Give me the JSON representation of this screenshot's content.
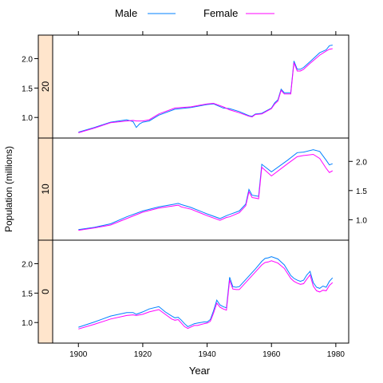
{
  "chart_data": {
    "type": "line",
    "layout": "trellis panels stacked vertically, shared x axis, alternating y tick sides",
    "xlabel": "Year",
    "ylabel": "Population (millions)",
    "xlim": [
      1892,
      1984
    ],
    "x_ticks": [
      1900,
      1920,
      1940,
      1960,
      1980
    ],
    "y_ticks": [
      1.0,
      1.5,
      2.0
    ],
    "y_tick_labels": [
      "1.0",
      "1.5",
      "2.0"
    ],
    "legend": {
      "placement": "top-center",
      "entries": [
        {
          "name": "Male",
          "color": "#0080ff"
        },
        {
          "name": "Female",
          "color": "#ff00ff"
        }
      ]
    },
    "strip_color": "#ffe5cc",
    "panels": [
      {
        "strip": "20",
        "ylim": [
          0.65,
          2.4
        ],
        "y_tick_side": "left",
        "series": [
          {
            "name": "Male",
            "color": "#0080ff",
            "x": [
              1900,
              1905,
              1910,
              1915,
              1917,
              1918,
              1919,
              1920,
              1922,
              1925,
              1930,
              1935,
              1940,
              1942,
              1945,
              1947,
              1950,
              1953,
              1954,
              1955,
              1957,
              1960,
              1961,
              1962,
              1963,
              1964,
              1965,
              1966,
              1967,
              1968,
              1969,
              1970,
              1972,
              1975,
              1977,
              1978,
              1979
            ],
            "y": [
              0.75,
              0.83,
              0.92,
              0.96,
              0.93,
              0.83,
              0.89,
              0.92,
              0.94,
              1.04,
              1.14,
              1.17,
              1.22,
              1.23,
              1.16,
              1.15,
              1.1,
              1.03,
              1.02,
              1.06,
              1.07,
              1.16,
              1.25,
              1.3,
              1.48,
              1.42,
              1.42,
              1.42,
              1.96,
              1.82,
              1.82,
              1.85,
              1.95,
              2.1,
              2.15,
              2.22,
              2.23
            ]
          },
          {
            "name": "Female",
            "color": "#ff00ff",
            "x": [
              1900,
              1905,
              1910,
              1915,
              1917,
              1918,
              1919,
              1920,
              1922,
              1925,
              1930,
              1935,
              1940,
              1942,
              1945,
              1947,
              1950,
              1953,
              1954,
              1955,
              1957,
              1960,
              1961,
              1962,
              1963,
              1964,
              1965,
              1966,
              1967,
              1968,
              1969,
              1970,
              1972,
              1975,
              1977,
              1978,
              1979
            ],
            "y": [
              0.74,
              0.82,
              0.91,
              0.94,
              0.95,
              0.94,
              0.94,
              0.94,
              0.96,
              1.06,
              1.16,
              1.18,
              1.23,
              1.24,
              1.18,
              1.13,
              1.08,
              1.02,
              1.01,
              1.05,
              1.06,
              1.15,
              1.23,
              1.28,
              1.46,
              1.4,
              1.4,
              1.4,
              1.93,
              1.79,
              1.79,
              1.82,
              1.92,
              2.06,
              2.13,
              2.16,
              2.17
            ]
          }
        ]
      },
      {
        "strip": "10",
        "ylim": [
          0.65,
          2.4
        ],
        "y_tick_side": "right",
        "series": [
          {
            "name": "Male",
            "color": "#0080ff",
            "x": [
              1900,
              1905,
              1910,
              1915,
              1920,
              1925,
              1930,
              1931,
              1932,
              1935,
              1940,
              1944,
              1946,
              1947,
              1950,
              1952,
              1953,
              1954,
              1955,
              1956,
              1957,
              1960,
              1965,
              1968,
              1970,
              1973,
              1975,
              1977,
              1978,
              1979
            ],
            "y": [
              0.83,
              0.87,
              0.93,
              1.05,
              1.15,
              1.22,
              1.27,
              1.28,
              1.26,
              1.21,
              1.1,
              1.02,
              1.07,
              1.09,
              1.15,
              1.27,
              1.52,
              1.42,
              1.41,
              1.4,
              1.95,
              1.82,
              2.02,
              2.15,
              2.16,
              2.2,
              2.17,
              2.02,
              1.94,
              1.96
            ]
          },
          {
            "name": "Female",
            "color": "#ff00ff",
            "x": [
              1900,
              1905,
              1910,
              1915,
              1920,
              1925,
              1930,
              1931,
              1932,
              1935,
              1940,
              1944,
              1946,
              1947,
              1950,
              1952,
              1953,
              1954,
              1955,
              1956,
              1957,
              1960,
              1965,
              1968,
              1970,
              1973,
              1975,
              1977,
              1978,
              1979
            ],
            "y": [
              0.82,
              0.86,
              0.91,
              1.02,
              1.13,
              1.2,
              1.24,
              1.25,
              1.22,
              1.18,
              1.07,
              0.99,
              1.04,
              1.05,
              1.12,
              1.24,
              1.48,
              1.38,
              1.37,
              1.36,
              1.9,
              1.75,
              1.96,
              2.08,
              2.1,
              2.12,
              2.05,
              1.88,
              1.81,
              1.84
            ]
          }
        ]
      },
      {
        "strip": "0",
        "ylim": [
          0.65,
          2.4
        ],
        "y_tick_side": "left",
        "series": [
          {
            "name": "Male",
            "color": "#0080ff",
            "x": [
              1900,
              1905,
              1910,
              1915,
              1917,
              1918,
              1920,
              1922,
              1925,
              1927,
              1929,
              1930,
              1931,
              1932,
              1933,
              1934,
              1936,
              1937,
              1939,
              1940,
              1941,
              1942,
              1943,
              1944,
              1945,
              1946,
              1947,
              1948,
              1949,
              1950,
              1955,
              1957,
              1958,
              1959,
              1960,
              1962,
              1964,
              1966,
              1967,
              1968,
              1969,
              1970,
              1971,
              1972,
              1973,
              1974,
              1975,
              1976,
              1977,
              1978,
              1979
            ],
            "y": [
              0.92,
              1.01,
              1.11,
              1.17,
              1.17,
              1.14,
              1.18,
              1.23,
              1.27,
              1.18,
              1.11,
              1.08,
              1.09,
              1.04,
              0.98,
              0.93,
              0.98,
              0.99,
              1.01,
              1.01,
              1.05,
              1.2,
              1.38,
              1.3,
              1.27,
              1.25,
              1.77,
              1.61,
              1.6,
              1.61,
              1.91,
              2.04,
              2.09,
              2.1,
              2.12,
              2.08,
              1.98,
              1.8,
              1.75,
              1.72,
              1.7,
              1.72,
              1.81,
              1.87,
              1.68,
              1.6,
              1.58,
              1.62,
              1.6,
              1.7,
              1.76
            ]
          },
          {
            "name": "Female",
            "color": "#ff00ff",
            "x": [
              1900,
              1905,
              1910,
              1915,
              1917,
              1918,
              1920,
              1922,
              1925,
              1927,
              1929,
              1930,
              1931,
              1932,
              1933,
              1934,
              1936,
              1937,
              1939,
              1940,
              1941,
              1942,
              1943,
              1944,
              1945,
              1946,
              1947,
              1948,
              1949,
              1950,
              1955,
              1957,
              1958,
              1959,
              1960,
              1962,
              1964,
              1966,
              1967,
              1968,
              1969,
              1970,
              1971,
              1972,
              1973,
              1974,
              1975,
              1976,
              1977,
              1978,
              1979
            ],
            "y": [
              0.89,
              0.97,
              1.06,
              1.12,
              1.13,
              1.12,
              1.14,
              1.18,
              1.22,
              1.14,
              1.06,
              1.04,
              1.05,
              0.99,
              0.93,
              0.9,
              0.95,
              0.95,
              0.98,
              0.99,
              1.02,
              1.16,
              1.33,
              1.26,
              1.23,
              1.21,
              1.72,
              1.57,
              1.56,
              1.56,
              1.86,
              1.98,
              2.02,
              2.03,
              2.05,
              2.01,
              1.92,
              1.75,
              1.7,
              1.67,
              1.65,
              1.66,
              1.74,
              1.81,
              1.62,
              1.54,
              1.52,
              1.55,
              1.54,
              1.63,
              1.68
            ]
          }
        ]
      }
    ]
  }
}
